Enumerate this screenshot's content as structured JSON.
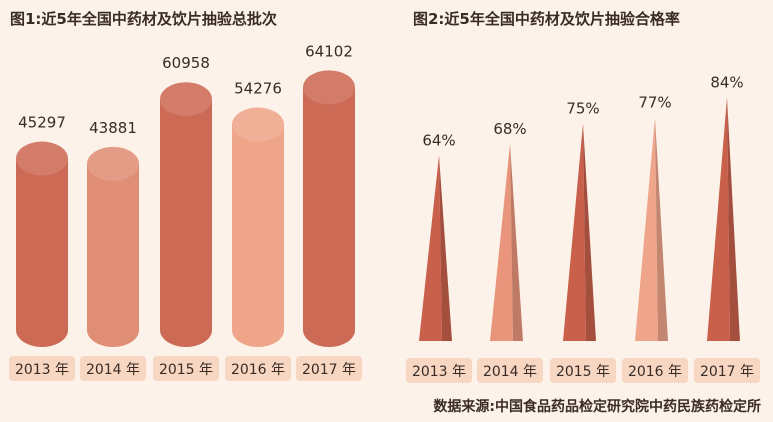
{
  "chart_data": [
    {
      "type": "bar",
      "title": "图1:近5年全国中药材及饮片抽验总批次",
      "categories": [
        "2013 年",
        "2014 年",
        "2015 年",
        "2016 年",
        "2017 年"
      ],
      "values": [
        45297,
        43881,
        60958,
        54276,
        64102
      ],
      "ylim": [
        0,
        70000
      ],
      "xlabel": "",
      "ylabel": "",
      "grid": false,
      "colors": [
        "#cd6a55",
        "#e08e76",
        "#cd6a55",
        "#eea58a",
        "#cd6a55"
      ]
    },
    {
      "type": "bar",
      "title": "图2:近5年全国中药材及饮片抽验合格率",
      "categories": [
        "2013 年",
        "2014 年",
        "2015 年",
        "2016 年",
        "2017 年"
      ],
      "values": [
        64,
        68,
        75,
        77,
        84
      ],
      "value_labels": [
        "64%",
        "68%",
        "75%",
        "77%",
        "84%"
      ],
      "ylim": [
        0,
        100
      ],
      "xlabel": "",
      "ylabel": "",
      "grid": false,
      "colors": [
        "#c8604c",
        "#e8957b",
        "#c8604c",
        "#eea58a",
        "#c8604c"
      ]
    }
  ],
  "source": "数据来源:中国食品药品检定研究院中药民族药检定所"
}
